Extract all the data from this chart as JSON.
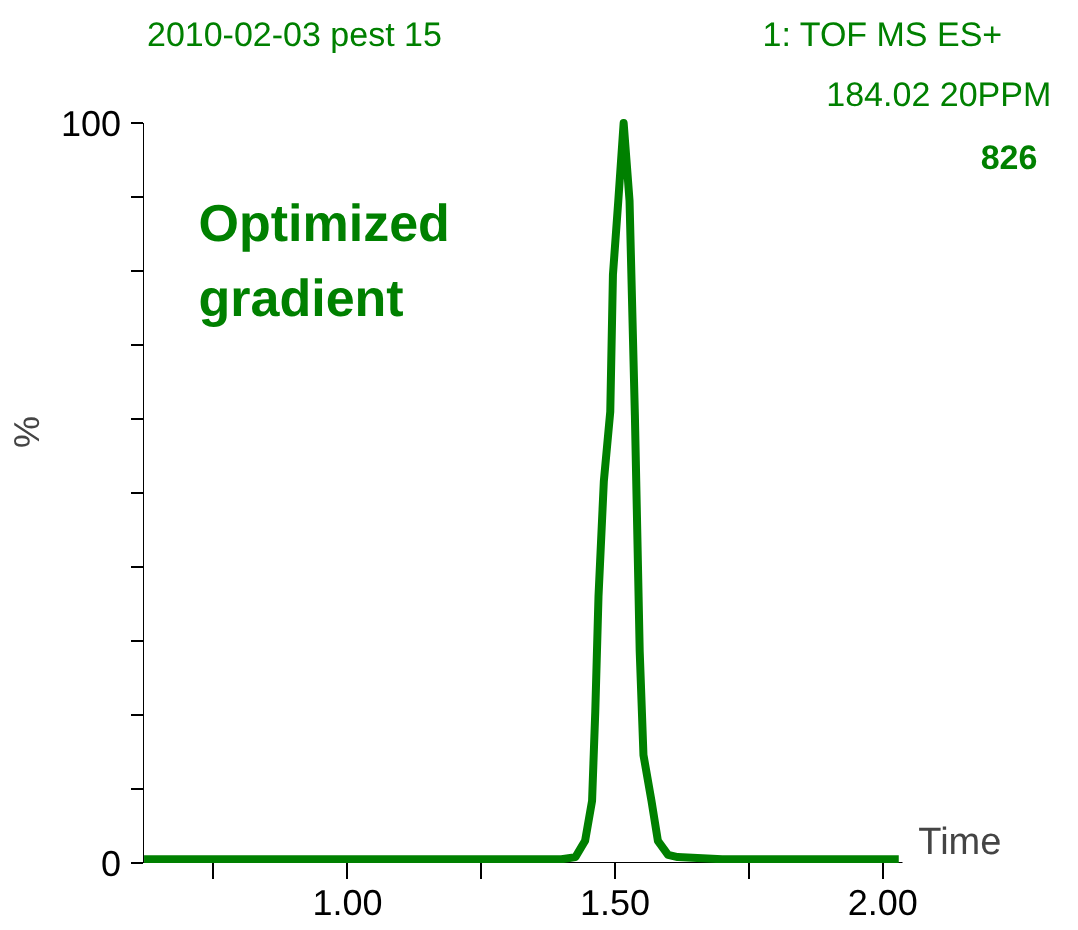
{
  "chart_data": {
    "type": "line",
    "title": "2010-02-03 pest 15",
    "subtitle": "1: TOF MS ES+",
    "xlabel": "Time",
    "ylabel": "%",
    "annotations": [
      "184.02 20PPM",
      "826",
      "Optimized gradient"
    ],
    "series": [
      {
        "color": "#008000",
        "x": [
          0.62,
          0.8,
          1.0,
          1.2,
          1.4,
          1.426,
          1.444,
          1.457,
          1.463,
          1.469,
          1.479,
          1.491,
          1.496,
          1.506,
          1.516,
          1.527,
          1.537,
          1.546,
          1.553,
          1.568,
          1.58,
          1.599,
          1.617,
          1.7,
          1.85,
          2.03
        ],
        "values": [
          0.5,
          0.5,
          0.5,
          0.5,
          0.5,
          0.8,
          3,
          8.4,
          20.5,
          36,
          51.6,
          61,
          79.5,
          89.5,
          100,
          89.5,
          60.5,
          28.6,
          14.6,
          8.4,
          3,
          1.1,
          0.8,
          0.5,
          0.5,
          0.5
        ]
      }
    ],
    "xlim": [
      0.618,
      2.037
    ],
    "ylim": [
      0,
      100
    ],
    "xticks": [
      {
        "value": 0.75,
        "label": null
      },
      {
        "value": 1.0,
        "label": "1.00"
      },
      {
        "value": 1.25,
        "label": null
      },
      {
        "value": 1.5,
        "label": "1.50"
      },
      {
        "value": 1.75,
        "label": null
      },
      {
        "value": 2.0,
        "label": "2.00"
      }
    ],
    "yticks": [
      0,
      {
        "value": 10,
        "label": null
      },
      {
        "value": 20,
        "label": null
      },
      {
        "value": 30,
        "label": null
      },
      {
        "value": 40,
        "label": null
      },
      {
        "value": 50,
        "label": null
      },
      {
        "value": 60,
        "label": null
      },
      {
        "value": 70,
        "label": null
      },
      {
        "value": 80,
        "label": null
      },
      {
        "value": 90,
        "label": null
      },
      100
    ],
    "grid": false,
    "marker": "none",
    "line_style": "solid"
  }
}
